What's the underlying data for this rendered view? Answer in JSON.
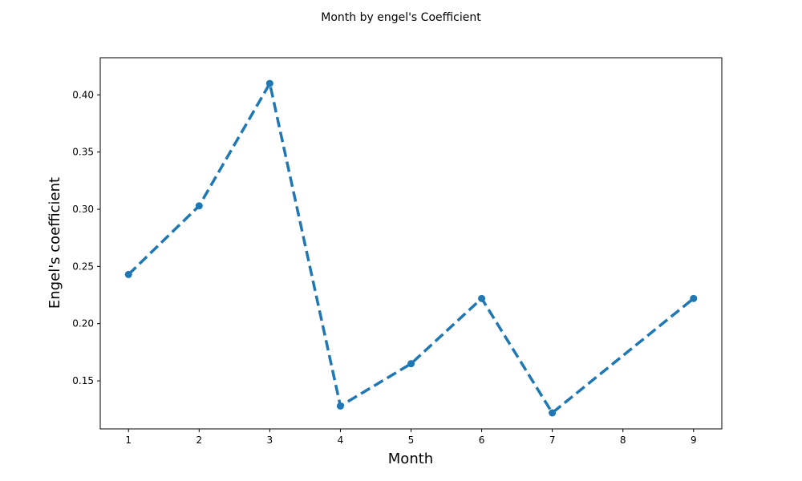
{
  "chart_data": {
    "type": "line",
    "title": "Month by engel's Coefficient",
    "xlabel": "Month",
    "ylabel": "Engel's coefficient",
    "x": [
      1,
      2,
      3,
      4,
      5,
      6,
      7,
      9
    ],
    "series": [
      {
        "values": [
          0.243,
          0.303,
          0.41,
          0.128,
          0.165,
          0.222,
          0.122,
          0.222
        ],
        "color": "#1f77b4",
        "line_style": "dashed",
        "marker": "circle"
      }
    ],
    "xticks": [
      1,
      2,
      3,
      4,
      5,
      6,
      7,
      8,
      9
    ],
    "xtick_labels": [
      "1",
      "2",
      "3",
      "4",
      "5",
      "6",
      "7",
      "8",
      "9"
    ],
    "yticks": [
      0.15,
      0.2,
      0.25,
      0.3,
      0.35,
      0.4
    ],
    "ytick_labels": [
      "0.15",
      "0.20",
      "0.25",
      "0.30",
      "0.35",
      "0.40"
    ],
    "xlim": [
      0.6,
      9.4
    ],
    "ylim": [
      0.108,
      0.4325
    ],
    "grid": false,
    "legend": false
  }
}
